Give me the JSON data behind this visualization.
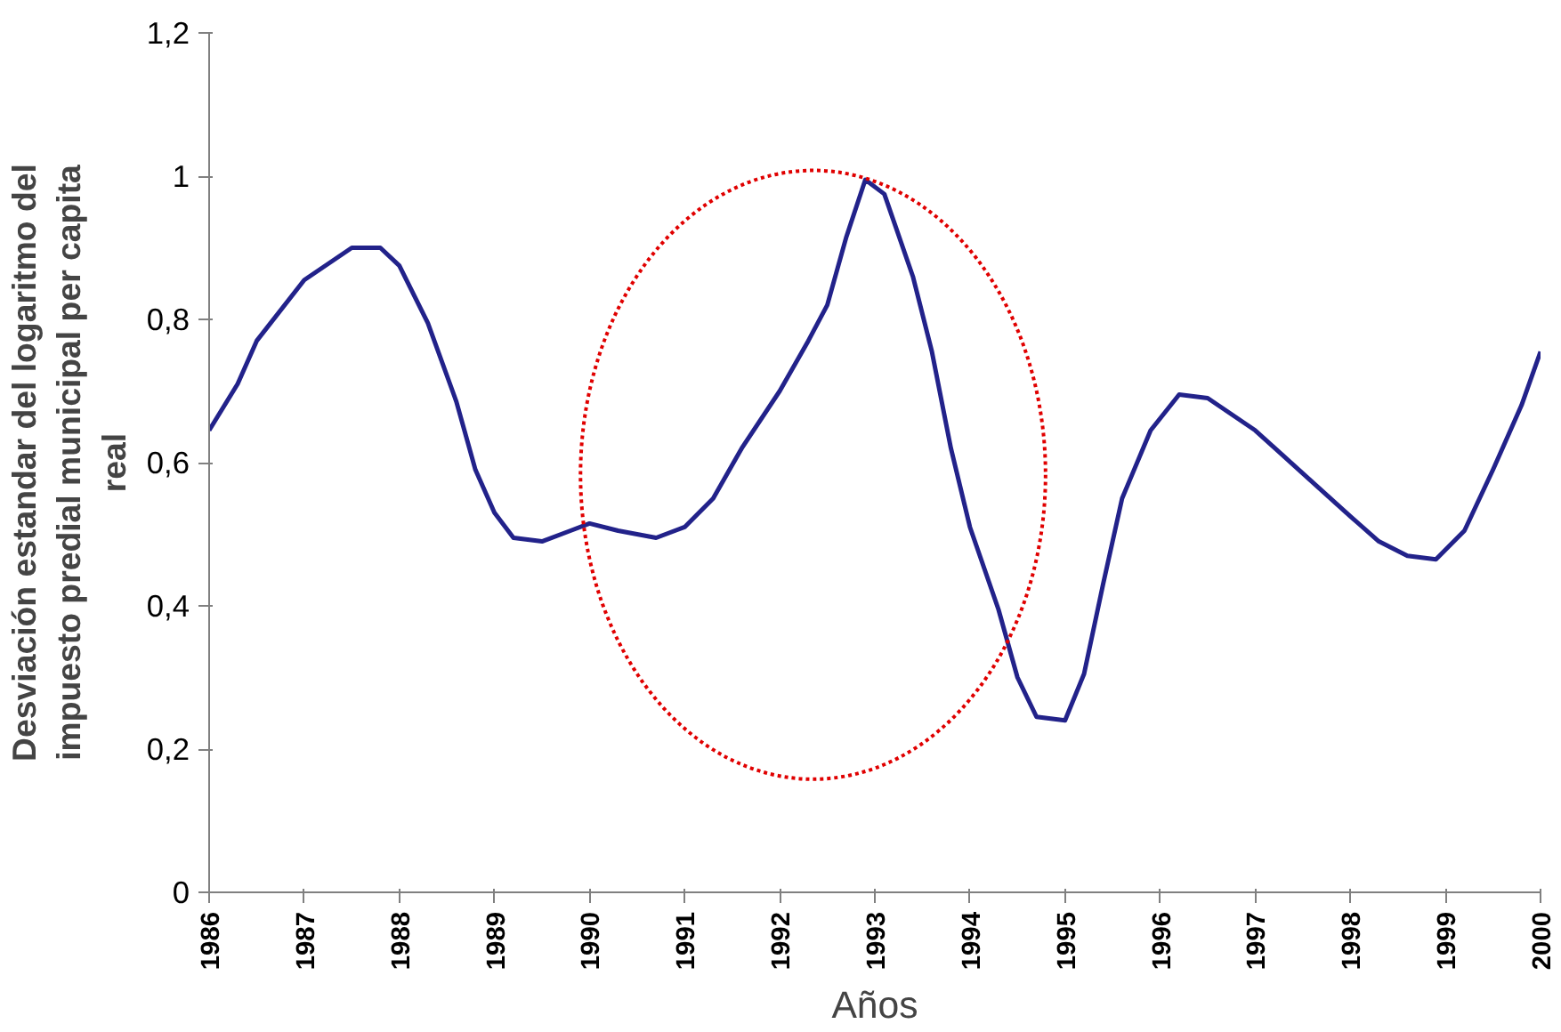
{
  "chart_data": {
    "type": "line",
    "xlabel": "Años",
    "ylabel": "Desviación estandar del logaritmo del impuesto predial municipal per capita real",
    "x": [
      1986,
      1986.3,
      1986.5,
      1987,
      1987.5,
      1987.8,
      1988,
      1988.3,
      1988.6,
      1988.8,
      1989,
      1989.2,
      1989.5,
      1989.8,
      1990,
      1990.3,
      1990.7,
      1991,
      1991.3,
      1991.6,
      1992,
      1992.3,
      1992.5,
      1992.7,
      1992.9,
      1993.1,
      1993.4,
      1993.6,
      1993.8,
      1994,
      1994.3,
      1994.5,
      1994.7,
      1995,
      1995.2,
      1995.4,
      1995.6,
      1995.9,
      1996.2,
      1996.5,
      1997,
      1997.5,
      1998,
      1998.3,
      1998.6,
      1998.9,
      1999.2,
      1999.5,
      1999.8,
      2000
    ],
    "series": [
      {
        "color": "#22228a",
        "values": [
          0.645,
          0.71,
          0.77,
          0.855,
          0.9,
          0.9,
          0.875,
          0.795,
          0.685,
          0.59,
          0.53,
          0.495,
          0.49,
          0.505,
          0.515,
          0.505,
          0.495,
          0.51,
          0.55,
          0.62,
          0.7,
          0.77,
          0.82,
          0.915,
          0.995,
          0.975,
          0.86,
          0.755,
          0.62,
          0.51,
          0.395,
          0.3,
          0.245,
          0.24,
          0.305,
          0.43,
          0.55,
          0.645,
          0.695,
          0.69,
          0.645,
          0.585,
          0.525,
          0.49,
          0.47,
          0.465,
          0.505,
          0.59,
          0.68,
          0.755
        ]
      }
    ],
    "xlim": [
      1986,
      2000
    ],
    "xticks": [
      1986,
      1987,
      1988,
      1989,
      1990,
      1991,
      1992,
      1993,
      1994,
      1995,
      1996,
      1997,
      1998,
      1999,
      2000
    ],
    "ylim": [
      0,
      1.2
    ],
    "yticks": [
      0,
      {
        "value": 0.2,
        "label": "0,2"
      },
      {
        "value": 0.4,
        "label": "0,4"
      },
      {
        "value": 0.6,
        "label": "0,6"
      },
      {
        "value": 0.8,
        "label": "0,8"
      },
      1,
      {
        "value": 1.2,
        "label": "1,2"
      }
    ],
    "grid": false,
    "marker": "none",
    "line_style": "solid"
  }
}
